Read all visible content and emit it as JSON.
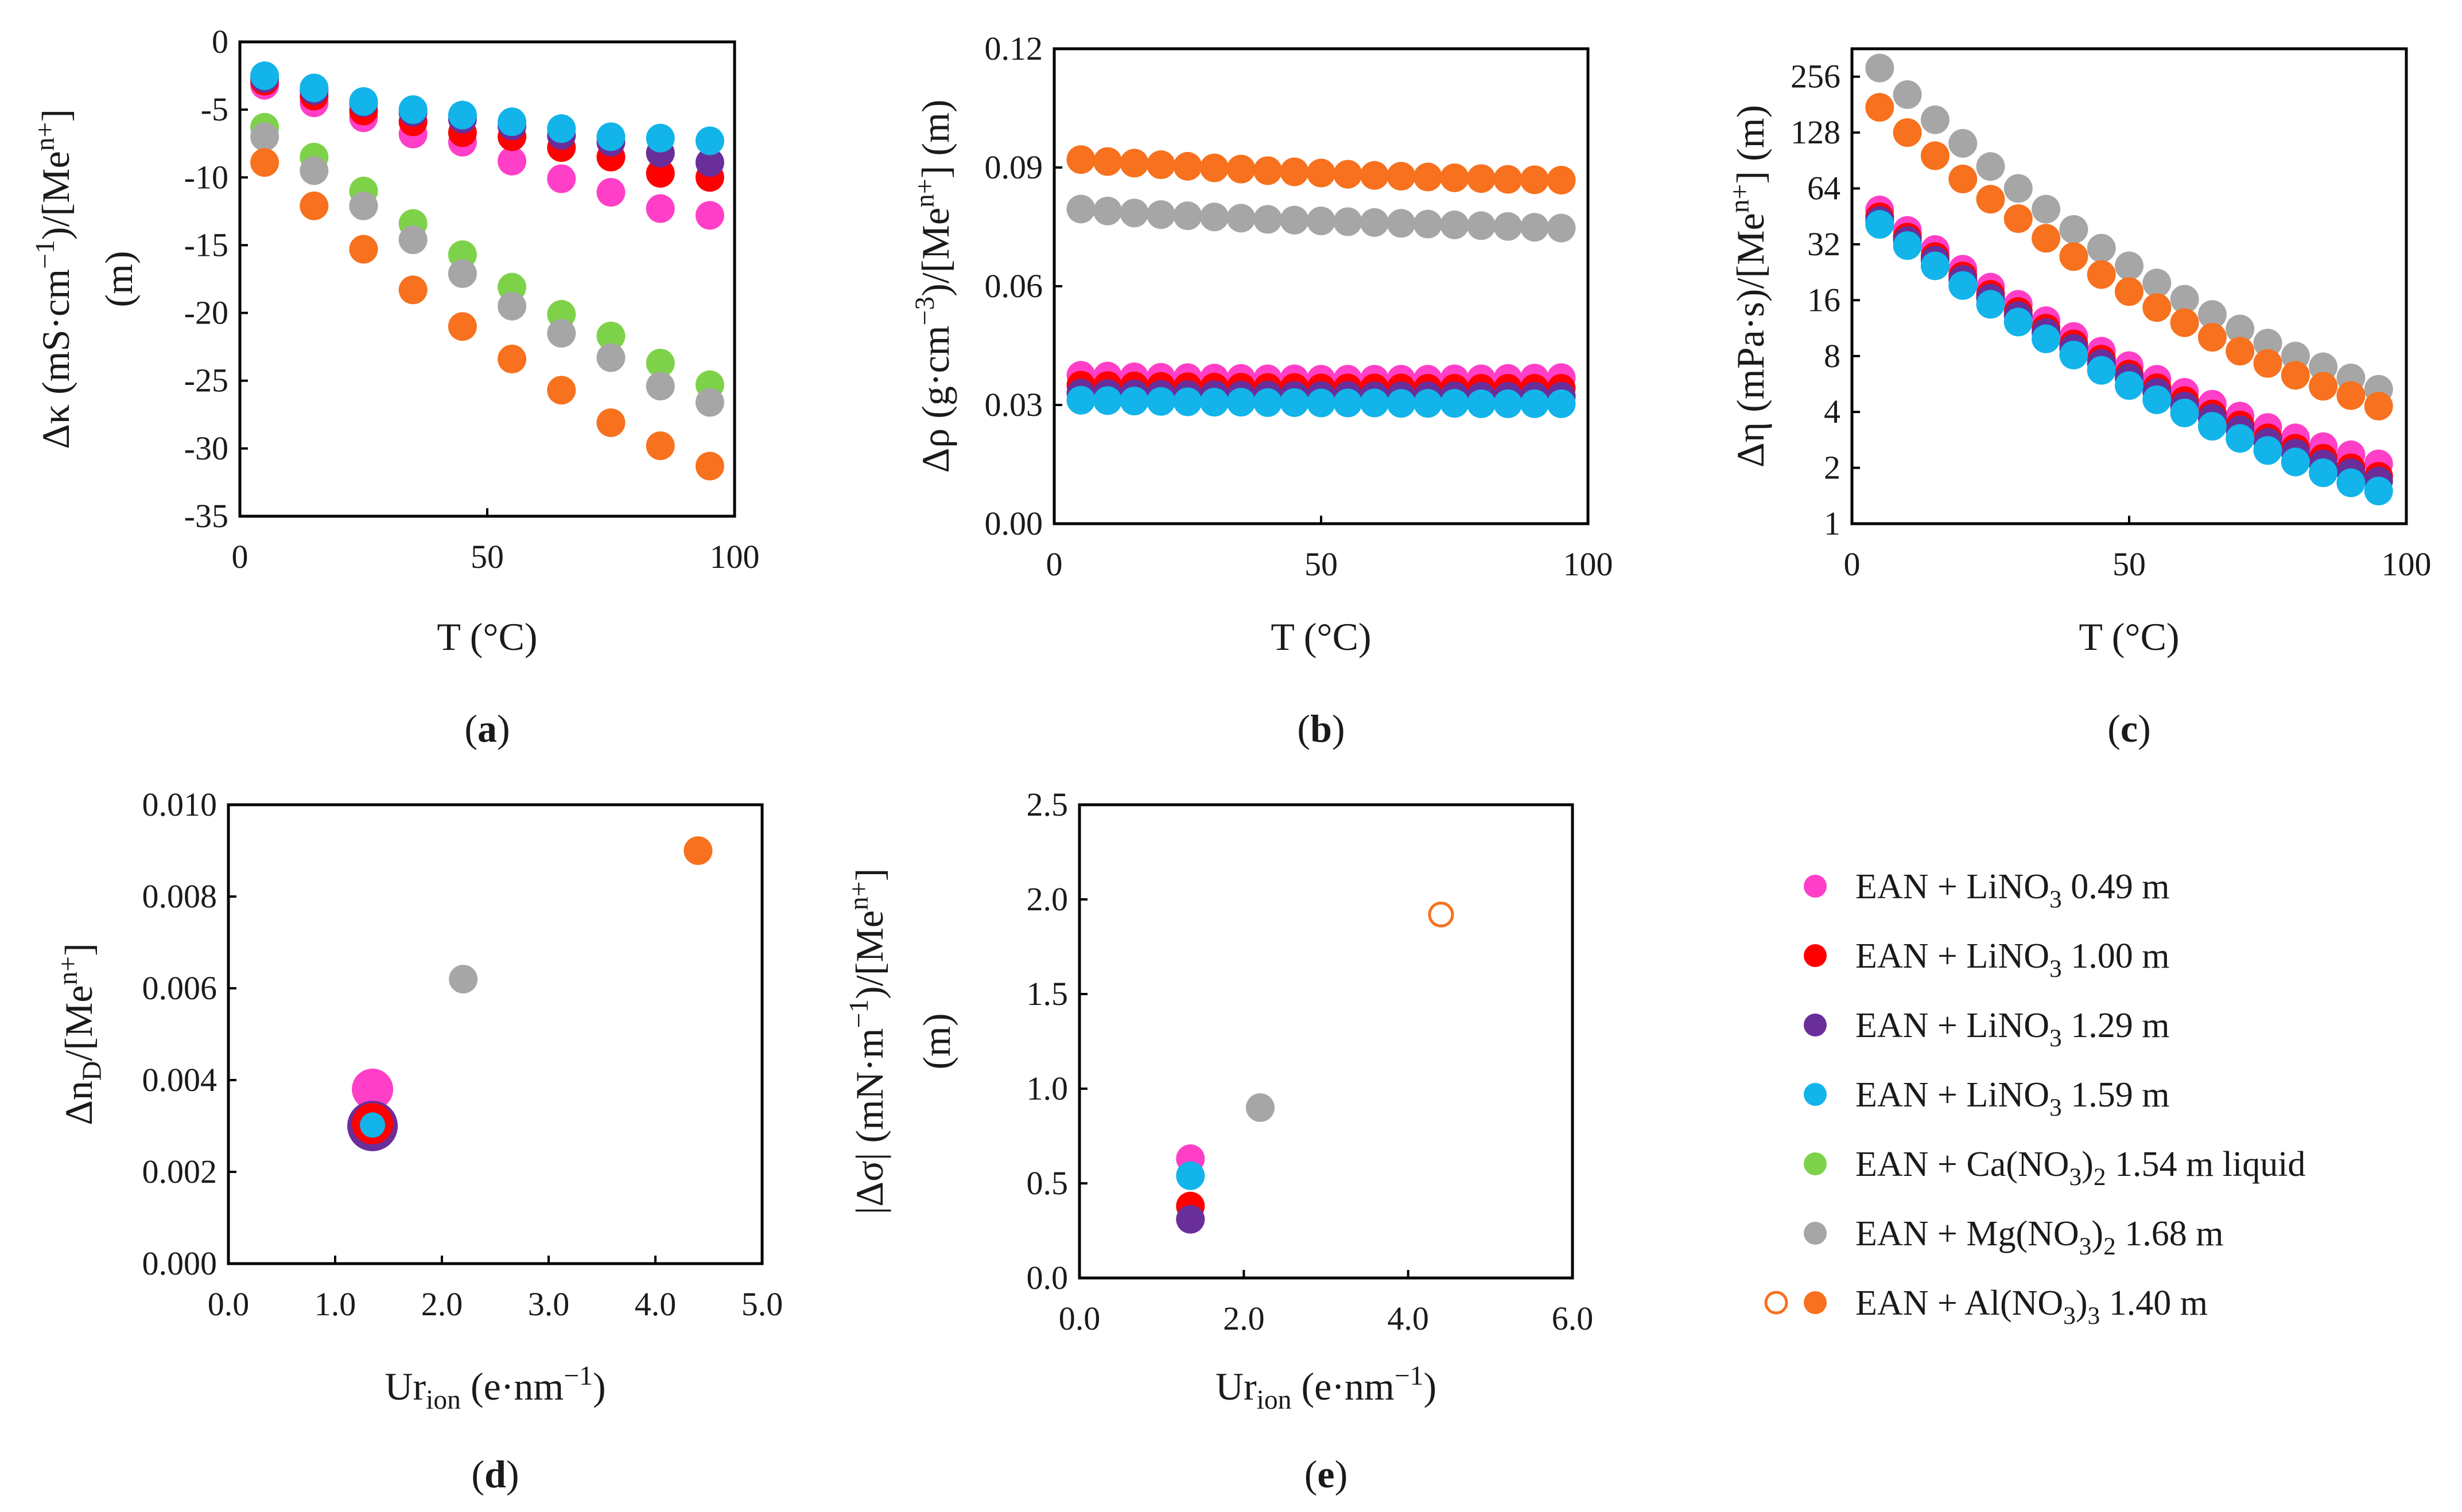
{
  "figure": {
    "legend": {
      "entries": [
        {
          "key": "li049",
          "color": "#ff3fc7",
          "parts": [
            [
              "EAN + LiNO",
              "n"
            ],
            [
              "3",
              "sub"
            ],
            [
              " 0.49 m",
              "n"
            ]
          ]
        },
        {
          "key": "li100",
          "color": "#ff0000",
          "parts": [
            [
              "EAN + LiNO",
              "n"
            ],
            [
              "3",
              "sub"
            ],
            [
              " 1.00 m",
              "n"
            ]
          ]
        },
        {
          "key": "li129",
          "color": "#6a2e9a",
          "parts": [
            [
              "EAN + LiNO",
              "n"
            ],
            [
              "3",
              "sub"
            ],
            [
              " 1.29 m",
              "n"
            ]
          ]
        },
        {
          "key": "li159",
          "color": "#12b4ea",
          "parts": [
            [
              "EAN + LiNO",
              "n"
            ],
            [
              "3",
              "sub"
            ],
            [
              " 1.59 m",
              "n"
            ]
          ]
        },
        {
          "key": "ca154",
          "color": "#7ed24a",
          "parts": [
            [
              "EAN + Ca(NO",
              "n"
            ],
            [
              "3",
              "sub"
            ],
            [
              ")",
              "n"
            ],
            [
              "2",
              "sub"
            ],
            [
              " 1.54 m liquid",
              "n"
            ]
          ]
        },
        {
          "key": "mg168",
          "color": "#a6a6a6",
          "parts": [
            [
              "EAN + Mg(NO",
              "n"
            ],
            [
              "3",
              "sub"
            ],
            [
              ")",
              "n"
            ],
            [
              "2",
              "sub"
            ],
            [
              " 1.68 m",
              "n"
            ]
          ]
        },
        {
          "key": "al140",
          "color": "#f7711e",
          "parts": [
            [
              "EAN + Al(NO",
              "n"
            ],
            [
              "3",
              "sub"
            ],
            [
              ")",
              "n"
            ],
            [
              "3",
              "sub"
            ],
            [
              " 1.40 m",
              "n"
            ]
          ],
          "open_marker": true
        }
      ]
    }
  },
  "chart_data": [
    {
      "panel": "a",
      "panel_label": "a",
      "type": "scatter",
      "xlabel": "T (°C)",
      "ylabel_parts": [
        [
          "Δκ (mS·cm",
          "n"
        ],
        [
          "−1",
          "sup"
        ],
        [
          ")/[Me",
          "n"
        ],
        [
          "n+",
          "sup"
        ],
        [
          "]",
          "n"
        ]
      ],
      "ylabel_line2": "(m)",
      "xlim": [
        0,
        100
      ],
      "ylim": [
        -35,
        0
      ],
      "xticks": [
        0,
        50,
        100
      ],
      "yticks": [
        -35,
        -30,
        -25,
        -20,
        -15,
        -10,
        -5,
        0
      ],
      "ytick_labels": [
        "-35",
        "-30",
        "-25",
        "-20",
        "-15",
        "-10",
        "-5",
        "0"
      ],
      "x": [
        5,
        15,
        25,
        35,
        45,
        55,
        65,
        75,
        85,
        95
      ],
      "series": [
        {
          "name": "li049",
          "values": [
            -3.2,
            -4.5,
            -5.6,
            -6.8,
            -7.4,
            -8.8,
            -10.1,
            -11.1,
            -12.3,
            -12.8
          ]
        },
        {
          "name": "li100",
          "values": [
            -2.9,
            -4.0,
            -5.1,
            -5.9,
            -6.7,
            -7.0,
            -7.8,
            -8.5,
            -9.7,
            -10.0
          ]
        },
        {
          "name": "li129",
          "values": [
            -2.7,
            -3.6,
            -4.5,
            -5.2,
            -5.7,
            -6.2,
            -6.9,
            -7.4,
            -8.2,
            -8.9
          ]
        },
        {
          "name": "li159",
          "values": [
            -2.5,
            -3.4,
            -4.4,
            -5.0,
            -5.4,
            -5.9,
            -6.4,
            -7.0,
            -7.1,
            -7.3
          ]
        },
        {
          "name": "ca154",
          "values": [
            -6.3,
            -8.5,
            -11.0,
            -13.4,
            -15.7,
            -18.1,
            -20.1,
            -21.7,
            -23.7,
            -25.3
          ]
        },
        {
          "name": "mg168",
          "values": [
            -7.0,
            -9.5,
            -12.1,
            -14.6,
            -17.1,
            -19.5,
            -21.5,
            -23.3,
            -25.4,
            -26.6
          ]
        },
        {
          "name": "al140",
          "values": [
            -8.9,
            -12.1,
            -15.3,
            -18.3,
            -21.0,
            -23.4,
            -25.7,
            -28.1,
            -29.8,
            -31.3
          ]
        }
      ]
    },
    {
      "panel": "b",
      "panel_label": "b",
      "type": "scatter",
      "xlabel": "T (°C)",
      "ylabel_parts": [
        [
          "Δρ (g·cm",
          "n"
        ],
        [
          "−3",
          "sup"
        ],
        [
          ")/[Me",
          "n"
        ],
        [
          "n+",
          "sup"
        ],
        [
          "] (m)",
          "n"
        ]
      ],
      "xlim": [
        0,
        100
      ],
      "ylim": [
        0,
        0.12
      ],
      "xticks": [
        0,
        50,
        100
      ],
      "yticks": [
        0,
        0.03,
        0.06,
        0.09,
        0.12
      ],
      "ytick_labels": [
        "0.00",
        "0.03",
        "0.06",
        "0.09",
        "0.12"
      ],
      "x": [
        5,
        10,
        15,
        20,
        25,
        30,
        35,
        40,
        45,
        50,
        55,
        60,
        65,
        70,
        75,
        80,
        85,
        90,
        95
      ],
      "series": [
        {
          "name": "li049",
          "values": [
            0.0375,
            0.0373,
            0.0371,
            0.037,
            0.0369,
            0.0368,
            0.0367,
            0.0366,
            0.0366,
            0.0365,
            0.0365,
            0.0365,
            0.0365,
            0.0365,
            0.0366,
            0.0366,
            0.0367,
            0.0368,
            0.0369
          ]
        },
        {
          "name": "li100",
          "values": [
            0.035,
            0.0349,
            0.0348,
            0.0347,
            0.0346,
            0.0345,
            0.0345,
            0.0344,
            0.0344,
            0.0343,
            0.0343,
            0.0343,
            0.0343,
            0.0342,
            0.0342,
            0.0342,
            0.0342,
            0.0342,
            0.0342
          ]
        },
        {
          "name": "li129",
          "values": [
            0.033,
            0.0329,
            0.0328,
            0.0327,
            0.0326,
            0.0326,
            0.0325,
            0.0325,
            0.0324,
            0.0324,
            0.0324,
            0.0323,
            0.0323,
            0.0323,
            0.0323,
            0.0322,
            0.0322,
            0.0322,
            0.0322
          ]
        },
        {
          "name": "li159",
          "values": [
            0.0312,
            0.0311,
            0.031,
            0.0309,
            0.0308,
            0.0307,
            0.0307,
            0.0306,
            0.0306,
            0.0305,
            0.0305,
            0.0305,
            0.0304,
            0.0304,
            0.0304,
            0.0303,
            0.0303,
            0.0303,
            0.0303
          ]
        },
        {
          "name": "mg168",
          "values": [
            0.0795,
            0.079,
            0.0785,
            0.0781,
            0.0778,
            0.0775,
            0.0772,
            0.0769,
            0.0767,
            0.0765,
            0.0763,
            0.0761,
            0.0759,
            0.0757,
            0.0755,
            0.0753,
            0.0751,
            0.0749,
            0.0747
          ]
        },
        {
          "name": "al140",
          "values": [
            0.092,
            0.0915,
            0.0911,
            0.0907,
            0.0903,
            0.0899,
            0.0896,
            0.0892,
            0.0889,
            0.0886,
            0.0883,
            0.088,
            0.0878,
            0.0876,
            0.0874,
            0.0872,
            0.087,
            0.0869,
            0.0868
          ]
        }
      ]
    },
    {
      "panel": "c",
      "panel_label": "c",
      "type": "scatter",
      "yscale": "log2",
      "xlabel": "T (°C)",
      "ylabel_parts": [
        [
          "Δη (mPa·s)/[Me",
          "n"
        ],
        [
          "n+",
          "sup"
        ],
        [
          "] (m)",
          "n"
        ]
      ],
      "xlim": [
        0,
        100
      ],
      "ylim": [
        1,
        362
      ],
      "xticks": [
        0,
        50,
        100
      ],
      "yticks": [
        1,
        2,
        4,
        8,
        16,
        32,
        64,
        128,
        256
      ],
      "ytick_labels": [
        "1",
        "2",
        "4",
        "8",
        "16",
        "32",
        "64",
        "128",
        "256"
      ],
      "x": [
        5,
        10,
        15,
        20,
        25,
        30,
        35,
        40,
        45,
        50,
        55,
        60,
        65,
        70,
        75,
        80,
        85,
        90,
        95
      ],
      "series": [
        {
          "name": "li049",
          "values": [
            49,
            38,
            30,
            23.5,
            18.8,
            15.2,
            12.4,
            10.2,
            8.5,
            7.1,
            6.0,
            5.1,
            4.4,
            3.8,
            3.3,
            2.9,
            2.6,
            2.35,
            2.1
          ]
        },
        {
          "name": "li100",
          "values": [
            45,
            35,
            27.5,
            21.6,
            17.2,
            13.9,
            11.3,
            9.3,
            7.7,
            6.4,
            5.4,
            4.6,
            3.9,
            3.4,
            2.9,
            2.55,
            2.25,
            2.0,
            1.8
          ]
        },
        {
          "name": "li129",
          "values": [
            43,
            33.5,
            26.3,
            20.7,
            16.4,
            13.2,
            10.7,
            8.8,
            7.3,
            6.1,
            5.1,
            4.3,
            3.7,
            3.2,
            2.75,
            2.4,
            2.1,
            1.88,
            1.7
          ]
        },
        {
          "name": "li159",
          "values": [
            41,
            31.5,
            24.5,
            19.2,
            15.2,
            12.2,
            9.9,
            8.1,
            6.7,
            5.55,
            4.65,
            3.95,
            3.35,
            2.88,
            2.48,
            2.15,
            1.88,
            1.66,
            1.5
          ]
        },
        {
          "name": "mg168",
          "values": [
            285,
            205,
            150,
            112,
            84,
            64,
            49.5,
            38.5,
            30.5,
            24.5,
            19.8,
            16.2,
            13.4,
            11.2,
            9.4,
            8.0,
            7.0,
            6.1,
            5.3
          ]
        },
        {
          "name": "al140",
          "values": [
            175,
            128,
            96,
            72,
            56,
            44,
            34.5,
            27.5,
            22,
            17.8,
            14.6,
            12.1,
            10.1,
            8.5,
            7.3,
            6.3,
            5.5,
            4.9,
            4.3
          ]
        }
      ]
    },
    {
      "panel": "d",
      "panel_label": "d",
      "type": "scatter",
      "xlabel_parts": [
        [
          "Ur",
          "n"
        ],
        [
          "ion",
          "sub"
        ],
        [
          " (e·nm",
          "n"
        ],
        [
          "−1",
          "sup"
        ],
        [
          ")",
          "n"
        ]
      ],
      "ylabel_parts": [
        [
          "Δn",
          "n"
        ],
        [
          "D",
          "sub"
        ],
        [
          "/[Me",
          "n"
        ],
        [
          "n+",
          "sup"
        ],
        [
          "]",
          "n"
        ]
      ],
      "xlim": [
        0,
        5
      ],
      "ylim": [
        0,
        0.01
      ],
      "xticks": [
        0,
        1,
        2,
        3,
        4,
        5
      ],
      "yticks": [
        0,
        0.002,
        0.004,
        0.006,
        0.008,
        0.01
      ],
      "xtick_labels": [
        "0.0",
        "1.0",
        "2.0",
        "3.0",
        "4.0",
        "5.0"
      ],
      "ytick_labels": [
        "0.000",
        "0.002",
        "0.004",
        "0.006",
        "0.008",
        "0.010"
      ],
      "points": [
        {
          "series": "li049",
          "x": 1.35,
          "y": 0.0038,
          "size": "large"
        },
        {
          "series": "li129",
          "x": 1.35,
          "y": 0.003,
          "size": "xlarge"
        },
        {
          "series": "li100",
          "x": 1.35,
          "y": 0.00305,
          "size": "large"
        },
        {
          "series": "li159",
          "x": 1.35,
          "y": 0.00302,
          "size": "small"
        },
        {
          "series": "mg168",
          "x": 2.2,
          "y": 0.0062,
          "size": "normal"
        },
        {
          "series": "al140",
          "x": 4.4,
          "y": 0.009,
          "size": "normal"
        }
      ]
    },
    {
      "panel": "e",
      "panel_label": "e",
      "type": "scatter",
      "xlabel_parts": [
        [
          "Ur",
          "n"
        ],
        [
          "ion",
          "sub"
        ],
        [
          " (e·nm",
          "n"
        ],
        [
          "−1",
          "sup"
        ],
        [
          ")",
          "n"
        ]
      ],
      "ylabel_parts": [
        [
          "|Δσ| (mN·m",
          "n"
        ],
        [
          "−1",
          "sup"
        ],
        [
          ")/[Me",
          "n"
        ],
        [
          "n+",
          "sup"
        ],
        [
          "]",
          "n"
        ]
      ],
      "ylabel_line2": "(m)",
      "xlim": [
        0,
        6
      ],
      "ylim": [
        0,
        2.5
      ],
      "xticks": [
        0,
        2,
        4,
        6
      ],
      "yticks": [
        0,
        0.5,
        1,
        1.5,
        2,
        2.5
      ],
      "xtick_labels": [
        "0.0",
        "2.0",
        "4.0",
        "6.0"
      ],
      "ytick_labels": [
        "0.0",
        "0.5",
        "1.0",
        "1.5",
        "2.0",
        "2.5"
      ],
      "points": [
        {
          "series": "li049",
          "x": 1.35,
          "y": 0.63
        },
        {
          "series": "li159",
          "x": 1.35,
          "y": 0.54
        },
        {
          "series": "li100",
          "x": 1.35,
          "y": 0.38
        },
        {
          "series": "li129",
          "x": 1.35,
          "y": 0.31
        },
        {
          "series": "mg168",
          "x": 2.2,
          "y": 0.9
        },
        {
          "series": "al140",
          "x": 4.4,
          "y": 1.92,
          "open": true
        }
      ]
    }
  ]
}
